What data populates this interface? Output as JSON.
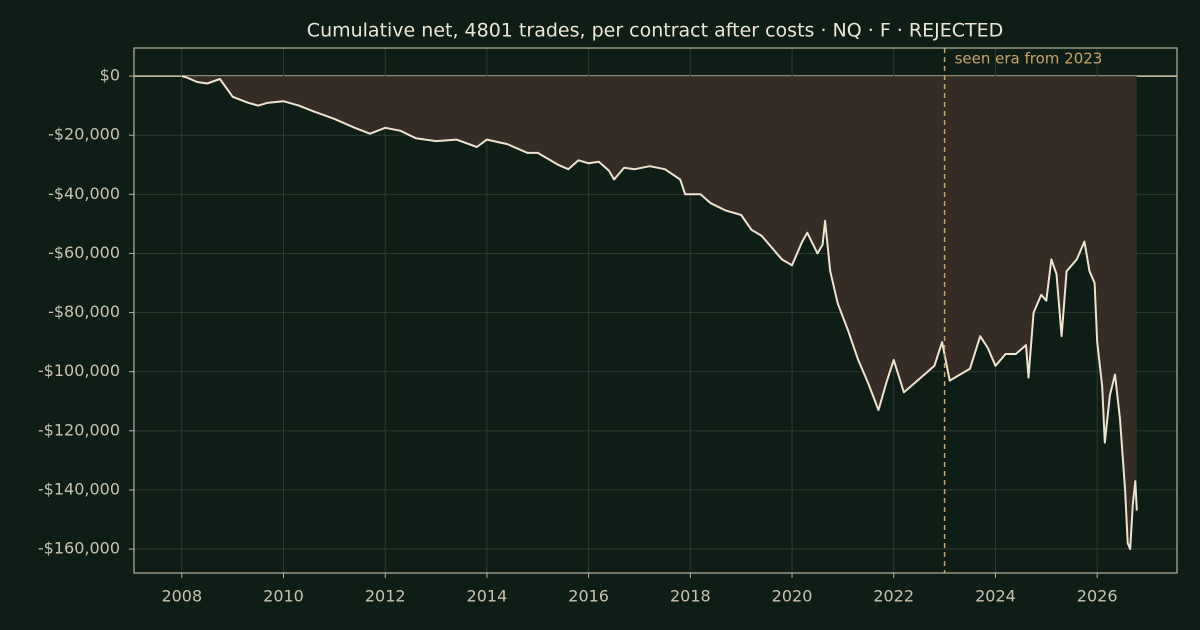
{
  "chart_data": {
    "type": "line",
    "title": "Cumulative net, 4801 trades, per contract after costs  ·  NQ · F · REJECTED",
    "x": [
      2008.0,
      2008.1,
      2008.3,
      2008.5,
      2008.75,
      2009.0,
      2009.3,
      2009.5,
      2009.7,
      2010.0,
      2010.3,
      2010.6,
      2011.0,
      2011.4,
      2011.7,
      2012.0,
      2012.3,
      2012.6,
      2013.0,
      2013.4,
      2013.8,
      2014.0,
      2014.4,
      2014.8,
      2015.0,
      2015.4,
      2015.6,
      2015.8,
      2016.0,
      2016.2,
      2016.4,
      2016.5,
      2016.7,
      2016.9,
      2017.2,
      2017.5,
      2017.8,
      2017.9,
      2018.2,
      2018.4,
      2018.7,
      2019.0,
      2019.2,
      2019.4,
      2019.6,
      2019.8,
      2020.0,
      2020.2,
      2020.3,
      2020.5,
      2020.6,
      2020.65,
      2020.75,
      2020.9,
      2021.1,
      2021.3,
      2021.5,
      2021.7,
      2021.85,
      2022.0,
      2022.2,
      2022.4,
      2022.6,
      2022.8,
      2022.95,
      2023.1,
      2023.3,
      2023.5,
      2023.7,
      2023.85,
      2024.0,
      2024.2,
      2024.4,
      2024.6,
      2024.65,
      2024.75,
      2024.9,
      2025.0,
      2025.1,
      2025.2,
      2025.3,
      2025.4,
      2025.6,
      2025.75,
      2025.85,
      2025.95,
      2026.0,
      2026.1,
      2026.15,
      2026.25,
      2026.35,
      2026.45,
      2026.55,
      2026.6,
      2026.65,
      2026.7,
      2026.75,
      2026.78
    ],
    "series": [
      {
        "name": "Cumulative net",
        "color": "#ede3cf",
        "fill": "#352c26",
        "values": [
          0,
          -500,
          -2000,
          -2500,
          -1000,
          -7000,
          -9000,
          -10000,
          -9000,
          -8500,
          -10000,
          -12000,
          -14500,
          -17500,
          -19500,
          -17500,
          -18500,
          -21000,
          -22000,
          -21500,
          -24000,
          -21500,
          -23000,
          -26000,
          -26000,
          -30000,
          -31500,
          -28500,
          -29500,
          -29000,
          -32000,
          -35000,
          -31000,
          -31500,
          -30500,
          -31500,
          -35000,
          -40000,
          -40000,
          -43000,
          -45500,
          -47000,
          -52000,
          -54000,
          -58000,
          -62000,
          -64000,
          -56000,
          -53000,
          -60000,
          -57000,
          -49000,
          -66000,
          -77000,
          -86000,
          -96000,
          -104000,
          -113000,
          -104000,
          -96000,
          -107000,
          -104000,
          -101000,
          -98000,
          -90000,
          -103000,
          -101000,
          -99000,
          -88000,
          -92000,
          -98000,
          -94000,
          -94000,
          -91000,
          -102000,
          -80000,
          -74000,
          -76000,
          -62000,
          -67000,
          -88000,
          -66000,
          -62000,
          -56000,
          -66000,
          -70000,
          -90000,
          -105000,
          -124000,
          -108000,
          -101000,
          -116000,
          -140000,
          -158000,
          -160000,
          -145000,
          -137000,
          -147000
        ]
      }
    ],
    "xlim": [
      2007.06,
      2027.57
    ],
    "ylim": [
      -168100,
      9500
    ],
    "xticks": [
      2008,
      2010,
      2012,
      2014,
      2016,
      2018,
      2020,
      2022,
      2024,
      2026
    ],
    "yticks": [
      {
        "value": 0,
        "label": "$0"
      },
      {
        "value": -20000,
        "label": "-$20,000"
      },
      {
        "value": -40000,
        "label": "-$40,000"
      },
      {
        "value": -60000,
        "label": "-$60,000"
      },
      {
        "value": -80000,
        "label": "-$80,000"
      },
      {
        "value": -100000,
        "label": "-$100,000"
      },
      {
        "value": -120000,
        "label": "-$120,000"
      },
      {
        "value": -140000,
        "label": "-$140,000"
      },
      {
        "value": -160000,
        "label": "-$160,000"
      }
    ],
    "grid": true,
    "annotation": {
      "text": "seen era from 2023",
      "x": 2023,
      "color": "#c9a467"
    }
  }
}
